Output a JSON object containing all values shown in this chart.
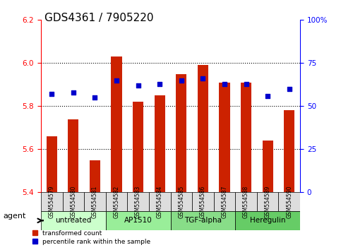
{
  "title": "GDS4361 / 7905220",
  "samples": [
    "GSM554579",
    "GSM554580",
    "GSM554581",
    "GSM554582",
    "GSM554583",
    "GSM554584",
    "GSM554585",
    "GSM554586",
    "GSM554587",
    "GSM554588",
    "GSM554589",
    "GSM554590"
  ],
  "transformed_count": [
    5.66,
    5.74,
    5.55,
    6.03,
    5.82,
    5.85,
    5.95,
    5.99,
    5.91,
    5.91,
    5.64,
    5.78
  ],
  "percentile_rank": [
    57,
    58,
    55,
    65,
    62,
    63,
    65,
    66,
    63,
    63,
    56,
    60
  ],
  "ylim_left": [
    5.4,
    6.2
  ],
  "ylim_right": [
    0,
    100
  ],
  "yticks_left": [
    5.4,
    5.6,
    5.8,
    6.0,
    6.2
  ],
  "yticks_right": [
    0,
    25,
    50,
    75,
    100
  ],
  "bar_color": "#cc2200",
  "dot_color": "#0000cc",
  "groups": [
    {
      "label": "untreated",
      "indices": [
        0,
        1,
        2
      ],
      "color": "#ccffcc"
    },
    {
      "label": "AP1510",
      "indices": [
        3,
        4,
        5
      ],
      "color": "#99ee99"
    },
    {
      "label": "TGF-alpha",
      "indices": [
        6,
        7,
        8
      ],
      "color": "#88dd88"
    },
    {
      "label": "Heregulin",
      "indices": [
        9,
        10,
        11
      ],
      "color": "#66cc66"
    }
  ],
  "legend_items": [
    {
      "label": "transformed count",
      "color": "#cc2200"
    },
    {
      "label": "percentile rank within the sample",
      "color": "#0000cc"
    }
  ],
  "agent_label": "agent",
  "title_fontsize": 11,
  "tick_fontsize": 7.5,
  "label_fontsize": 8,
  "grid_color": "#000000",
  "background_color": "#ffffff",
  "plot_bg_color": "#ffffff"
}
